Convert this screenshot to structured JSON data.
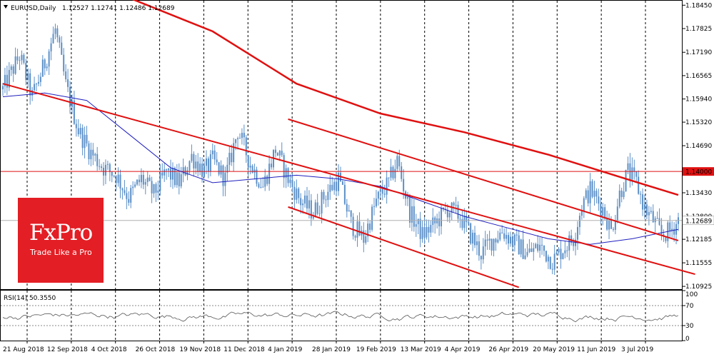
{
  "header": {
    "symbol": "EURUSD,Daily",
    "ohlc": "1.12527 1.12741 1.12486 1.12689"
  },
  "rsi_header": "RSI(14) 50.3550",
  "logo": {
    "main": "FxPro",
    "sub": "Trade Like a Pro"
  },
  "colors": {
    "candle": "#5b8fc7",
    "ma_fast": "#1f1fbf",
    "ma_slow": "#e01010",
    "trend": "#e01010",
    "resistance": "#e01010",
    "logo_bg": "#e31e24",
    "price_tag_red": "#e01010"
  },
  "chart_data": [
    {
      "type": "candlestick",
      "price_ticks": [
        "1.18450",
        "1.17825",
        "1.17190",
        "1.16565",
        "1.15940",
        "1.15320",
        "1.14690",
        "1.14000",
        "1.13430",
        "1.12800",
        "1.12185",
        "1.11555",
        "1.10925"
      ],
      "tick_values": [
        1.1845,
        1.17825,
        1.1719,
        1.16565,
        1.1594,
        1.1532,
        1.1469,
        1.14,
        1.1343,
        1.128,
        1.12185,
        1.11555,
        1.10925
      ],
      "ylim": [
        1.1085,
        1.1857
      ],
      "date_labels": [
        "21 Aug 2018",
        "12 Sep 2018",
        "4 Oct 2018",
        "26 Oct 2018",
        "19 Nov 2018",
        "11 Dec 2018",
        "4 Jan 2019",
        "28 Jan 2019",
        "19 Feb 2019",
        "13 Mar 2019",
        "4 Apr 2019",
        "26 Apr 2019",
        "20 May 2019",
        "11 Jun 2019",
        "3 Jul 2019"
      ],
      "resistance_level": 1.14,
      "resistance_label": "1.14000",
      "current_price": 1.12689,
      "current_label": "1.12689",
      "close_anchors": [
        [
          0,
          1.162
        ],
        [
          8,
          1.171
        ],
        [
          14,
          1.16
        ],
        [
          20,
          1.169
        ],
        [
          25,
          1.178
        ],
        [
          30,
          1.163
        ],
        [
          36,
          1.151
        ],
        [
          42,
          1.145
        ],
        [
          48,
          1.141
        ],
        [
          54,
          1.139
        ],
        [
          60,
          1.133
        ],
        [
          66,
          1.138
        ],
        [
          72,
          1.134
        ],
        [
          78,
          1.14
        ],
        [
          84,
          1.137
        ],
        [
          90,
          1.144
        ],
        [
          96,
          1.14
        ],
        [
          100,
          1.143
        ],
        [
          106,
          1.138
        ],
        [
          112,
          1.151
        ],
        [
          118,
          1.142
        ],
        [
          124,
          1.136
        ],
        [
          130,
          1.146
        ],
        [
          136,
          1.138
        ],
        [
          142,
          1.132
        ],
        [
          148,
          1.129
        ],
        [
          154,
          1.134
        ],
        [
          160,
          1.138
        ],
        [
          166,
          1.126
        ],
        [
          172,
          1.122
        ],
        [
          178,
          1.132
        ],
        [
          184,
          1.137
        ],
        [
          188,
          1.143
        ],
        [
          194,
          1.129
        ],
        [
          200,
          1.123
        ],
        [
          206,
          1.126
        ],
        [
          212,
          1.13
        ],
        [
          218,
          1.128
        ],
        [
          224,
          1.122
        ],
        [
          228,
          1.118
        ],
        [
          232,
          1.121
        ],
        [
          238,
          1.124
        ],
        [
          244,
          1.121
        ],
        [
          250,
          1.118
        ],
        [
          256,
          1.12
        ],
        [
          262,
          1.116
        ],
        [
          268,
          1.12
        ],
        [
          272,
          1.122
        ],
        [
          276,
          1.131
        ],
        [
          280,
          1.135
        ],
        [
          286,
          1.13
        ],
        [
          290,
          1.124
        ],
        [
          294,
          1.134
        ],
        [
          298,
          1.14
        ],
        [
          302,
          1.137
        ],
        [
          306,
          1.13
        ],
        [
          310,
          1.127
        ],
        [
          314,
          1.123
        ],
        [
          318,
          1.124
        ],
        [
          322,
          1.127
        ]
      ],
      "ma_fast": [
        [
          0,
          1.16
        ],
        [
          20,
          1.161
        ],
        [
          40,
          1.159
        ],
        [
          60,
          1.15
        ],
        [
          80,
          1.141
        ],
        [
          100,
          1.137
        ],
        [
          120,
          1.138
        ],
        [
          140,
          1.139
        ],
        [
          160,
          1.138
        ],
        [
          180,
          1.136
        ],
        [
          200,
          1.132
        ],
        [
          220,
          1.128
        ],
        [
          240,
          1.125
        ],
        [
          260,
          1.122
        ],
        [
          280,
          1.1205
        ],
        [
          300,
          1.122
        ],
        [
          322,
          1.1245
        ]
      ],
      "ma_slow": [
        [
          60,
          1.1865
        ],
        [
          100,
          1.1775
        ],
        [
          140,
          1.1635
        ],
        [
          180,
          1.1555
        ],
        [
          220,
          1.1505
        ],
        [
          260,
          1.1445
        ],
        [
          300,
          1.1375
        ],
        [
          322,
          1.1337
        ]
      ],
      "channel_lines": [
        {
          "from": [
            0,
            1.1635
          ],
          "to": [
            330,
            1.1125
          ]
        },
        {
          "from": [
            136,
            1.154
          ],
          "to": [
            322,
            1.1215
          ]
        },
        {
          "from": [
            136,
            1.1305
          ],
          "to": [
            246,
            1.109
          ]
        }
      ]
    },
    {
      "type": "line",
      "title": "RSI(14) 50.3550",
      "levels": [
        70,
        30
      ],
      "ticks": [
        "100",
        "70",
        "30",
        "0"
      ],
      "tick_values": [
        100,
        70,
        30,
        0
      ],
      "ylim": [
        0,
        100
      ],
      "last_value": 50.355
    }
  ]
}
